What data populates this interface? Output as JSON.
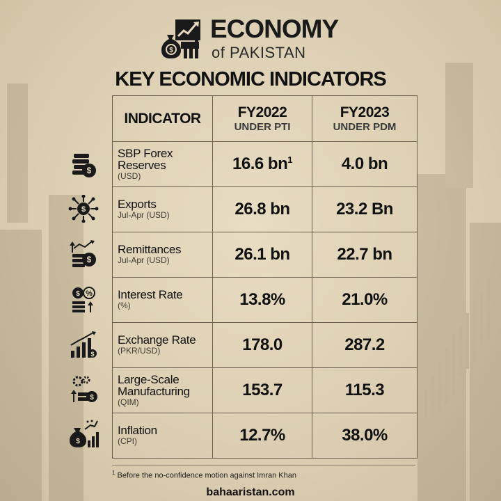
{
  "header": {
    "brand_title": "ECONOMY",
    "brand_subtitle": "of PAKISTAN",
    "main_title": "KEY ECONOMIC INDICATORS"
  },
  "table": {
    "col_indicator": "INDICATOR",
    "col_a_title": "FY2022",
    "col_a_sub": "UNDER PTI",
    "col_b_title": "FY2023",
    "col_b_sub": "UNDER PDM",
    "rows": [
      {
        "name": "SBP Forex Reserves",
        "unit": "(USD)",
        "fy2022": "16.6 bn",
        "fy2022_note": "1",
        "fy2023": "4.0 bn",
        "icon": "coins-stack-icon"
      },
      {
        "name": "Exports",
        "unit": "Jul-Apr (USD)",
        "fy2022": "26.8 bn",
        "fy2023": "23.2 Bn",
        "icon": "dollar-network-icon"
      },
      {
        "name": "Remittances",
        "unit": "Jul-Apr (USD)",
        "fy2022": "26.1 bn",
        "fy2023": "22.7 bn",
        "icon": "money-transfer-icon"
      },
      {
        "name": "Interest Rate",
        "unit": "(%)",
        "fy2022": "13.8%",
        "fy2023": "21.0%",
        "icon": "interest-coins-icon"
      },
      {
        "name": "Exchange Rate",
        "unit": "(PKR/USD)",
        "fy2022": "178.0",
        "fy2023": "287.2",
        "icon": "growth-chart-icon"
      },
      {
        "name": "Large-Scale Manufacturing",
        "unit": "(QIM)",
        "fy2022": "153.7",
        "fy2023": "115.3",
        "icon": "gears-money-icon"
      },
      {
        "name": "Inflation",
        "unit": "(CPI)",
        "fy2022": "12.7%",
        "fy2023": "38.0%",
        "icon": "money-bag-chart-icon"
      }
    ]
  },
  "footnote_marker": "1",
  "footnote": "Before the no-confidence motion against Imran Khan",
  "website": "bahaaristan.com",
  "colors": {
    "background": "#dccfb3",
    "border": "#6a5f4d",
    "text": "#111111"
  }
}
